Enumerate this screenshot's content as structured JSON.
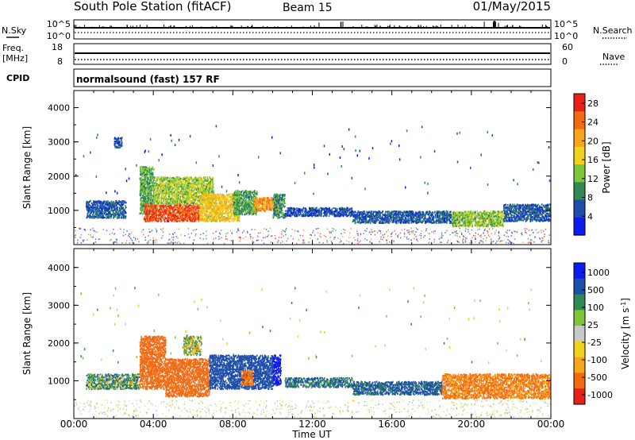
{
  "header": {
    "station": "South Pole Station (fitACF)",
    "beam": "Beam 15",
    "date": "01/May/2015"
  },
  "nsky": {
    "label": "N.Sky",
    "ticks_left": [
      "10^5",
      "10^0"
    ],
    "ticks_right": [
      "10^5",
      "10^0"
    ],
    "right_label": "N.Search"
  },
  "freq": {
    "label_line1": "Freq.",
    "label_line2": "[MHz]",
    "ticks_left": [
      "18",
      "8"
    ],
    "ticks_right": [
      "60",
      "0"
    ],
    "right_label": "Nave"
  },
  "cpid": {
    "label": "CPID",
    "mode": "normalsound (fast) 157 RF"
  },
  "x_axis": {
    "label": "Time UT",
    "range_hours": [
      0,
      24
    ],
    "ticks": [
      "00:00",
      "04:00",
      "08:00",
      "12:00",
      "16:00",
      "20:00",
      "00:00"
    ]
  },
  "colors": {
    "power_scale": [
      "#0a1cf0",
      "#1e4fa8",
      "#2f8a55",
      "#7dc63a",
      "#f2d21a",
      "#f7a51a",
      "#f26a12",
      "#e8201a"
    ],
    "velocity_scale": [
      "#e8201a",
      "#f26a12",
      "#f7a51a",
      "#f2d21a",
      "#c8c8c8",
      "#7dc63a",
      "#2f8a55",
      "#1e4fa8",
      "#0a1cf0"
    ]
  },
  "chart_data": [
    {
      "type": "heatmap",
      "panel": "power",
      "ylabel": "Slant Range [km]",
      "ylim": [
        0,
        4500
      ],
      "y_ticks": [
        "1000",
        "2000",
        "3000",
        "4000"
      ],
      "colorbar": {
        "label": "Power [dB]",
        "ticks": [
          "4",
          "8",
          "12",
          "16",
          "20",
          "24",
          "28"
        ],
        "range": [
          0,
          30
        ]
      },
      "regions": [
        {
          "t": [
            0.6,
            2.6
          ],
          "r": [
            800,
            1300
          ],
          "value": 6
        },
        {
          "t": [
            2.0,
            2.4
          ],
          "r": [
            2850,
            3150
          ],
          "value": 5
        },
        {
          "t": [
            3.3,
            4.0
          ],
          "r": [
            900,
            2300
          ],
          "value": 11
        },
        {
          "t": [
            3.5,
            6.3
          ],
          "r": [
            700,
            1200
          ],
          "value": 26
        },
        {
          "t": [
            4.0,
            7.0
          ],
          "r": [
            1200,
            2000
          ],
          "value": 14
        },
        {
          "t": [
            6.3,
            8.3
          ],
          "r": [
            700,
            1500
          ],
          "value": 18
        },
        {
          "t": [
            8.0,
            9.2
          ],
          "r": [
            900,
            1600
          ],
          "value": 11
        },
        {
          "t": [
            9.0,
            10.3
          ],
          "r": [
            1000,
            1400
          ],
          "value": 22
        },
        {
          "t": [
            10.0,
            10.6
          ],
          "r": [
            800,
            1500
          ],
          "value": 9
        },
        {
          "t": [
            10.6,
            14.0
          ],
          "r": [
            850,
            1100
          ],
          "value": 5
        },
        {
          "t": [
            14.0,
            19.0
          ],
          "r": [
            650,
            1000
          ],
          "value": 6
        },
        {
          "t": [
            19.0,
            21.6
          ],
          "r": [
            550,
            1000
          ],
          "value": 13
        },
        {
          "t": [
            21.6,
            24.0
          ],
          "r": [
            700,
            1200
          ],
          "value": 6
        }
      ]
    },
    {
      "type": "heatmap",
      "panel": "velocity",
      "ylabel": "Slant Range [km]",
      "ylim": [
        0,
        4500
      ],
      "y_ticks": [
        "1000",
        "2000",
        "3000",
        "4000"
      ],
      "colorbar": {
        "label": "Velocity [m s^-1]",
        "ticks": [
          "1000",
          "500",
          "100",
          "25",
          "-25",
          "-100",
          "-500",
          "-1000"
        ],
        "range": [
          -1000,
          1000
        ]
      },
      "regions": [
        {
          "t": [
            0.6,
            3.3
          ],
          "r": [
            800,
            1200
          ],
          "value": 50
        },
        {
          "t": [
            3.3,
            4.6
          ],
          "r": [
            800,
            2200
          ],
          "value": -300
        },
        {
          "t": [
            4.6,
            6.8
          ],
          "r": [
            600,
            1600
          ],
          "value": -350
        },
        {
          "t": [
            5.5,
            6.4
          ],
          "r": [
            1700,
            2200
          ],
          "value": 10
        },
        {
          "t": [
            6.8,
            10.0
          ],
          "r": [
            800,
            1700
          ],
          "value": 200
        },
        {
          "t": [
            8.4,
            9.0
          ],
          "r": [
            900,
            1300
          ],
          "value": -150
        },
        {
          "t": [
            10.0,
            10.4
          ],
          "r": [
            900,
            1700
          ],
          "value": 700
        },
        {
          "t": [
            10.6,
            14.0
          ],
          "r": [
            850,
            1100
          ],
          "value": 100
        },
        {
          "t": [
            14.0,
            18.5
          ],
          "r": [
            650,
            1000
          ],
          "value": 150
        },
        {
          "t": [
            18.5,
            24.0
          ],
          "r": [
            550,
            1200
          ],
          "value": -120
        }
      ]
    }
  ]
}
